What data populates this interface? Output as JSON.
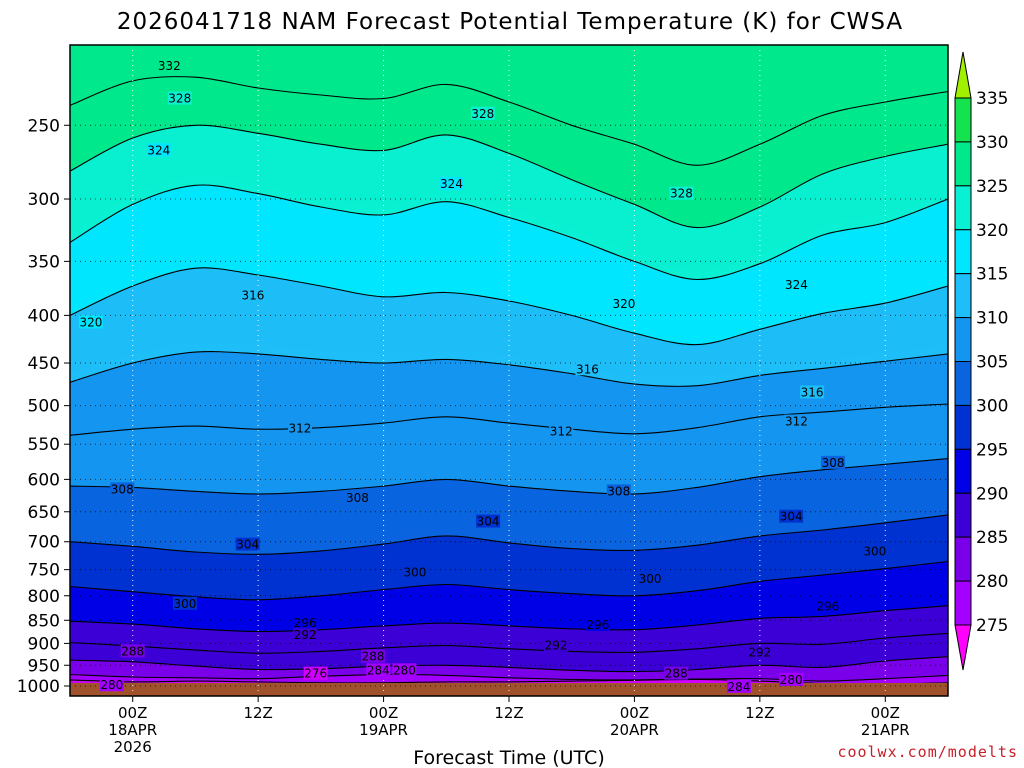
{
  "chart_data": {
    "type": "contour",
    "title": "2026041718 NAM Forecast Potential Temperature (K) for CWSA",
    "xlabel": "Forecast Time (UTC)",
    "ylabel": "",
    "y_axis": {
      "scale": "log-pressure",
      "ticks": [
        250,
        300,
        350,
        400,
        450,
        500,
        550,
        600,
        650,
        700,
        750,
        800,
        850,
        900,
        950,
        1000
      ],
      "tick_labels": [
        "250",
        "300",
        "350",
        "400",
        "450",
        "500",
        "550",
        "600",
        "650",
        "700",
        "750",
        "800",
        "850",
        "900",
        "950",
        "1000"
      ],
      "top": 205,
      "bottom": 1025,
      "reversed": true
    },
    "x_axis": {
      "range_hours": [
        0,
        84
      ],
      "ticks": [
        {
          "hour": 6,
          "lines": [
            "00Z",
            "18APR",
            "2026"
          ]
        },
        {
          "hour": 18,
          "lines": [
            "12Z"
          ]
        },
        {
          "hour": 30,
          "lines": [
            "00Z",
            "19APR"
          ]
        },
        {
          "hour": 42,
          "lines": [
            "12Z"
          ]
        },
        {
          "hour": 54,
          "lines": [
            "00Z",
            "20APR"
          ]
        },
        {
          "hour": 66,
          "lines": [
            "12Z"
          ]
        },
        {
          "hour": 78,
          "lines": [
            "00Z",
            "21APR"
          ]
        }
      ]
    },
    "grid": true,
    "colorbar": {
      "levels": [
        270,
        275,
        280,
        285,
        290,
        295,
        300,
        305,
        310,
        315,
        320,
        325,
        330,
        335,
        340
      ],
      "tick_labels": [
        "275",
        "280",
        "285",
        "290",
        "295",
        "300",
        "305",
        "310",
        "315",
        "320",
        "325",
        "330",
        "335"
      ],
      "colors": [
        "#ff00ff",
        "#d000ff",
        "#a400ff",
        "#7a00ea",
        "#3c00d6",
        "#0000e6",
        "#0032d2",
        "#0a64e0",
        "#1496f0",
        "#1ebef8",
        "#00e6ff",
        "#0af0d2",
        "#00e88c",
        "#14e24e",
        "#a0f000"
      ]
    },
    "terrain_color": "#a0522d",
    "contour_interval": 4,
    "contours": [
      {
        "theta": 280,
        "pressure": [
          985,
          990,
          988,
          990,
          992,
          992,
          990,
          990,
          988,
          986,
          984,
          988,
          994,
          995,
          992
        ]
      },
      {
        "theta": 284,
        "pressure": [
          972,
          978,
          980,
          982,
          976,
          972,
          974,
          980,
          984,
          985,
          983,
          982,
          988,
          982,
          974
        ]
      },
      {
        "theta": 288,
        "pressure": [
          938,
          942,
          952,
          960,
          958,
          952,
          950,
          955,
          962,
          965,
          960,
          950,
          955,
          940,
          930
        ]
      },
      {
        "theta": 292,
        "pressure": [
          898,
          906,
          915,
          922,
          918,
          910,
          905,
          912,
          918,
          920,
          912,
          900,
          902,
          888,
          878
        ]
      },
      {
        "theta": 296,
        "pressure": [
          852,
          858,
          868,
          874,
          870,
          862,
          856,
          862,
          868,
          870,
          860,
          846,
          842,
          830,
          820
        ]
      },
      {
        "theta": 300,
        "pressure": [
          782,
          792,
          802,
          808,
          800,
          788,
          778,
          788,
          796,
          800,
          790,
          772,
          760,
          748,
          735
        ]
      },
      {
        "theta": 304,
        "pressure": [
          700,
          708,
          718,
          722,
          716,
          704,
          690,
          702,
          712,
          715,
          706,
          690,
          680,
          668,
          655
        ]
      },
      {
        "theta": 308,
        "pressure": [
          610,
          612,
          618,
          622,
          618,
          610,
          600,
          610,
          618,
          622,
          612,
          596,
          586,
          578,
          570
        ]
      },
      {
        "theta": 312,
        "pressure": [
          538,
          530,
          526,
          530,
          528,
          522,
          514,
          522,
          530,
          536,
          528,
          514,
          508,
          502,
          498
        ]
      },
      {
        "theta": 316,
        "pressure": [
          472,
          450,
          438,
          440,
          446,
          450,
          446,
          452,
          462,
          474,
          476,
          464,
          456,
          448,
          440
        ]
      },
      {
        "theta": 320,
        "pressure": [
          400,
          372,
          356,
          362,
          372,
          382,
          378,
          386,
          400,
          418,
          430,
          414,
          398,
          388,
          372
        ]
      },
      {
        "theta": 324,
        "pressure": [
          334,
          304,
          290,
          296,
          306,
          312,
          302,
          314,
          330,
          350,
          366,
          352,
          328,
          318,
          300
        ]
      },
      {
        "theta": 328,
        "pressure": [
          280,
          258,
          250,
          255,
          262,
          266,
          256,
          268,
          286,
          304,
          322,
          306,
          282,
          270,
          262
        ]
      },
      {
        "theta": 332,
        "pressure": [
          238,
          224,
          222,
          228,
          232,
          234,
          226,
          236,
          250,
          262,
          276,
          262,
          244,
          236,
          230
        ]
      }
    ],
    "contour_hours": [
      0,
      6,
      12,
      18,
      24,
      30,
      36,
      42,
      48,
      54,
      60,
      66,
      72,
      78,
      84
    ],
    "contour_labels": [
      {
        "text": "332",
        "hour": 9.5,
        "pressure": 216
      },
      {
        "text": "328",
        "hour": 10.5,
        "pressure": 234
      },
      {
        "text": "328",
        "hour": 39.5,
        "pressure": 243
      },
      {
        "text": "328",
        "hour": 58.5,
        "pressure": 296
      },
      {
        "text": "324",
        "hour": 8.5,
        "pressure": 266
      },
      {
        "text": "324",
        "hour": 36.5,
        "pressure": 289
      },
      {
        "text": "324",
        "hour": 69.5,
        "pressure": 371
      },
      {
        "text": "320",
        "hour": 2,
        "pressure": 407
      },
      {
        "text": "320",
        "hour": 53,
        "pressure": 389
      },
      {
        "text": "316",
        "hour": 17.5,
        "pressure": 381
      },
      {
        "text": "316",
        "hour": 49.5,
        "pressure": 457
      },
      {
        "text": "316",
        "hour": 71,
        "pressure": 484
      },
      {
        "text": "312",
        "hour": 22,
        "pressure": 529
      },
      {
        "text": "312",
        "hour": 47,
        "pressure": 533
      },
      {
        "text": "312",
        "hour": 69.5,
        "pressure": 520
      },
      {
        "text": "308",
        "hour": 5,
        "pressure": 615
      },
      {
        "text": "308",
        "hour": 27.5,
        "pressure": 628
      },
      {
        "text": "308",
        "hour": 52.5,
        "pressure": 618
      },
      {
        "text": "308",
        "hour": 73,
        "pressure": 576
      },
      {
        "text": "304",
        "hour": 17,
        "pressure": 705
      },
      {
        "text": "304",
        "hour": 40,
        "pressure": 666
      },
      {
        "text": "304",
        "hour": 69,
        "pressure": 658
      },
      {
        "text": "300",
        "hour": 11,
        "pressure": 816
      },
      {
        "text": "300",
        "hour": 33,
        "pressure": 755
      },
      {
        "text": "300",
        "hour": 55.5,
        "pressure": 768
      },
      {
        "text": "300",
        "hour": 77,
        "pressure": 717
      },
      {
        "text": "296",
        "hour": 22.5,
        "pressure": 856
      },
      {
        "text": "296",
        "hour": 50.5,
        "pressure": 860
      },
      {
        "text": "296",
        "hour": 72.5,
        "pressure": 822
      },
      {
        "text": "292",
        "hour": 22.5,
        "pressure": 882
      },
      {
        "text": "292",
        "hour": 46.5,
        "pressure": 905
      },
      {
        "text": "292",
        "hour": 66,
        "pressure": 921
      },
      {
        "text": "288",
        "hour": 6,
        "pressure": 918
      },
      {
        "text": "288",
        "hour": 29,
        "pressure": 930
      },
      {
        "text": "288",
        "hour": 58,
        "pressure": 970
      },
      {
        "text": "284",
        "hour": 29.5,
        "pressure": 962
      },
      {
        "text": "284",
        "hour": 64,
        "pressure": 1002
      },
      {
        "text": "280",
        "hour": 4,
        "pressure": 998
      },
      {
        "text": "280",
        "hour": 32,
        "pressure": 962
      },
      {
        "text": "280",
        "hour": 69,
        "pressure": 985
      },
      {
        "text": "276",
        "hour": 23.5,
        "pressure": 970
      }
    ]
  },
  "footer": {
    "credit": "coolwx.com/modelts"
  }
}
